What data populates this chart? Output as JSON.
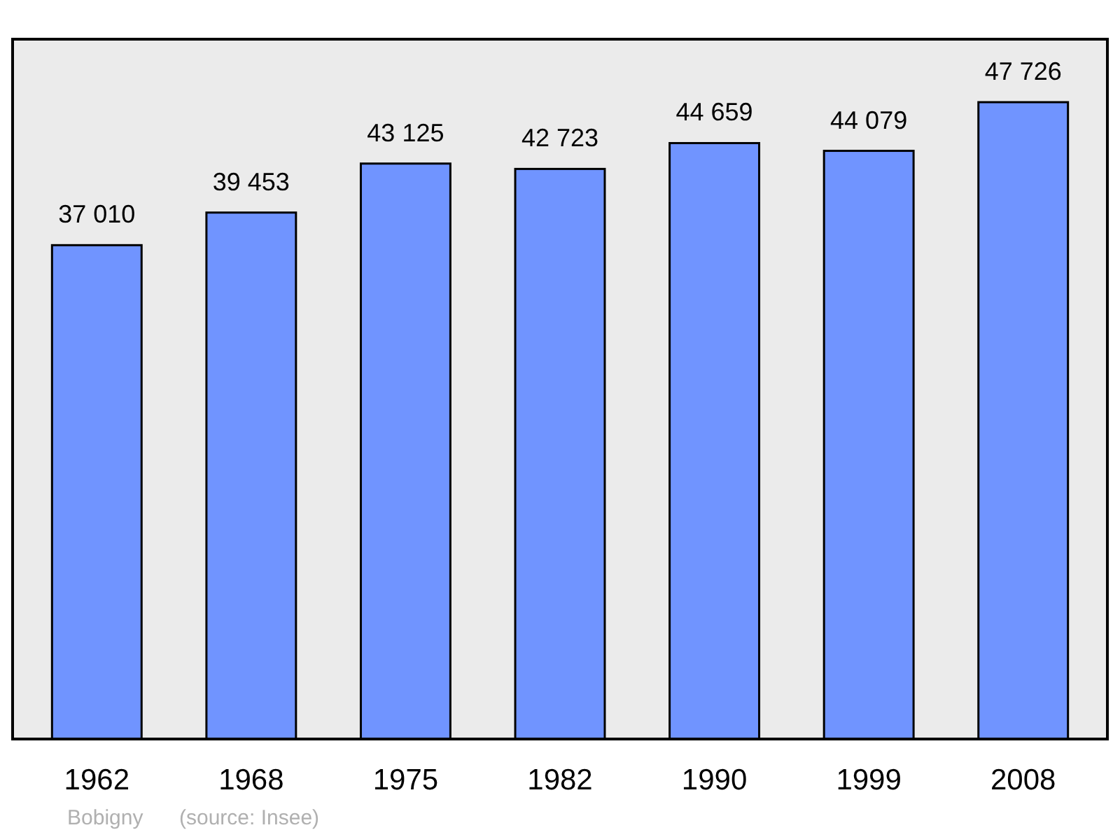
{
  "chart_data": {
    "type": "bar",
    "categories": [
      "1962",
      "1968",
      "1975",
      "1982",
      "1990",
      "1999",
      "2008"
    ],
    "values": [
      37010,
      39453,
      43125,
      42723,
      44659,
      44079,
      47726
    ],
    "value_labels": [
      "37 010",
      "39 453",
      "43 125",
      "42 723",
      "44 659",
      "44 079",
      "47 726"
    ],
    "color": "#7094ff",
    "annotations": [
      "Bobigny",
      "(source: Insee)"
    ]
  }
}
